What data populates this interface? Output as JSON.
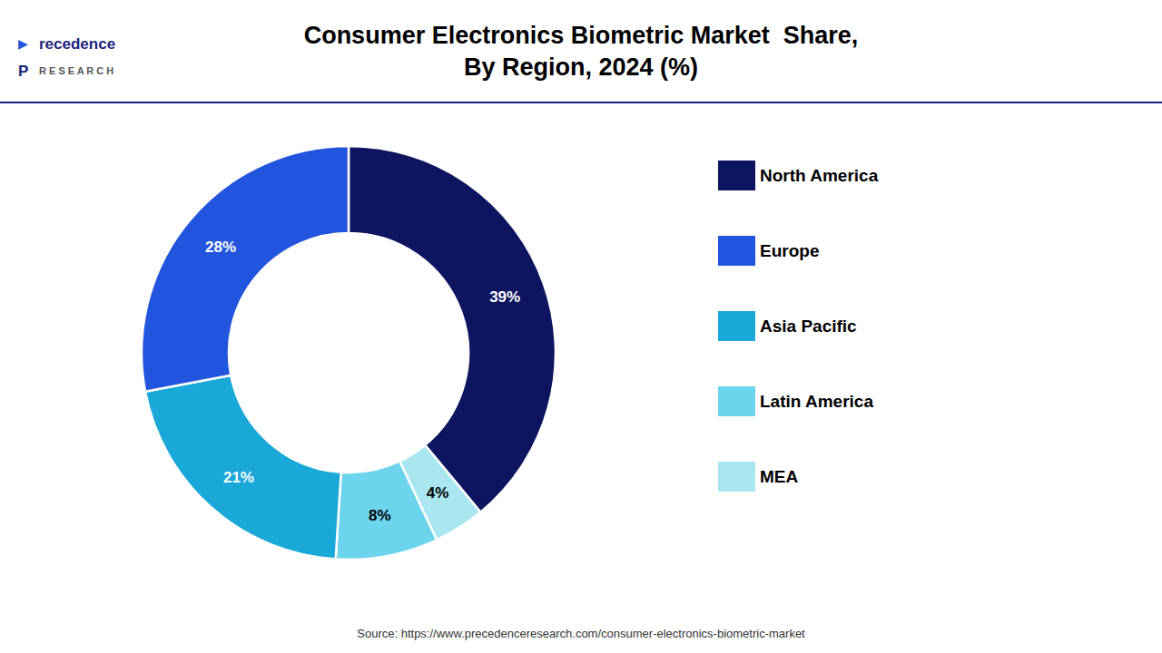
{
  "chart_data": {
    "type": "pie",
    "title": "Consumer Electronics Biometric Market  Share,\nBy Region, 2024 (%)",
    "categories": [
      "North America",
      "MEA",
      "Latin America",
      "Asia Pacific",
      "Europe"
    ],
    "values": [
      39,
      4,
      8,
      21,
      28
    ],
    "value_labels": [
      "39%",
      "4%",
      "8%",
      "21%",
      "28%"
    ],
    "colors": [
      "#0d1560",
      "#a8e6f0",
      "#6dd4ee",
      "#1aa8d8",
      "#2255dd"
    ],
    "data_labels": true,
    "legend": "right",
    "annotations": [
      "Source: https://www.precedenceresearch.com/consumer-electronics-biometric-market",
      "▶",
      "recedence",
      "P",
      "R E S E A R C H"
    ]
  }
}
